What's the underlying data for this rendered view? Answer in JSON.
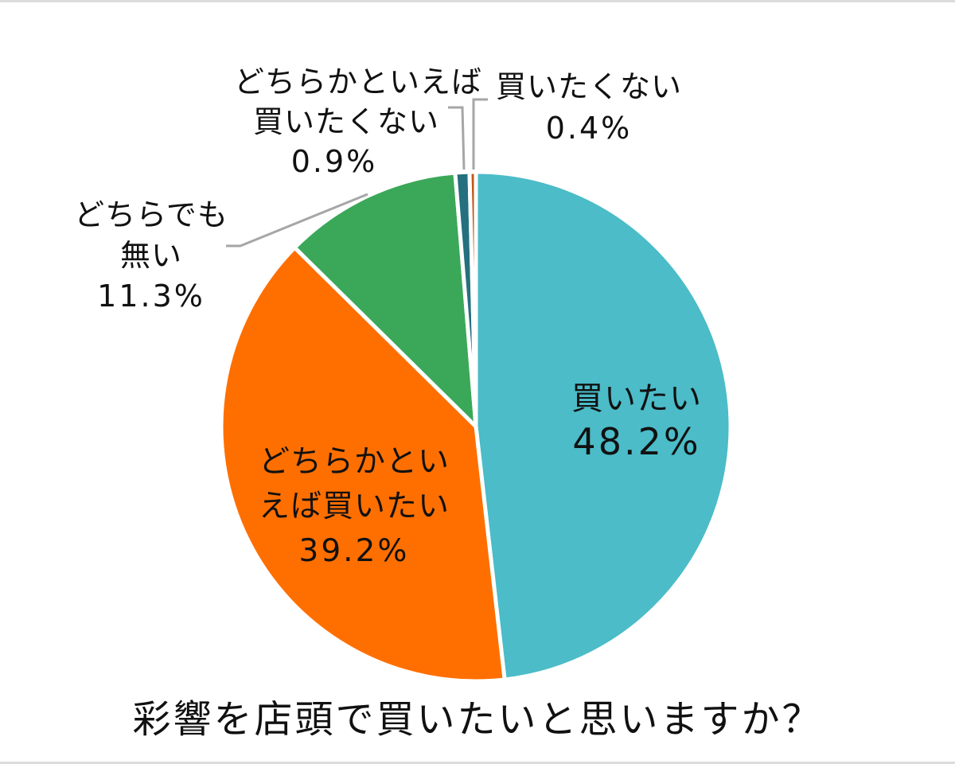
{
  "title": "彩響を店頭で買いたいと思いますか？",
  "colors": {
    "want": "#4BBCC8",
    "rather_want": "#FF6F00",
    "neither": "#3AA858",
    "rather_not": "#25707E",
    "not_want": "#C0561A",
    "leader": "#A6A6A6",
    "separator": "#FFFFFF"
  },
  "labels": {
    "want": {
      "line1": "買いたい",
      "pct": "48.2%"
    },
    "rather_want": {
      "line1": "どちらかとい",
      "line2": "えば買いたい",
      "pct": "39.2%"
    },
    "neither": {
      "line1": "どちらでも",
      "line2": "無い",
      "pct": "11.3%"
    },
    "rather_not": {
      "line1": "どちらかといえば",
      "line2": "買いたくない",
      "pct": "0.9%"
    },
    "not_want": {
      "line1": "買いたくない",
      "pct": "0.4%"
    }
  },
  "chart_data": {
    "type": "pie",
    "title": "彩響を店頭で買いたいと思いますか？",
    "start_angle": "12 o'clock, clockwise",
    "categories": [
      "買いたい",
      "どちらかといえば買いたい",
      "どちらでも無い",
      "どちらかといえば買いたくない",
      "買いたくない"
    ],
    "values": [
      48.2,
      39.2,
      11.3,
      0.9,
      0.4
    ],
    "unit": "%",
    "colors": [
      "#4BBCC8",
      "#FF6F00",
      "#3AA858",
      "#25707E",
      "#C0561A"
    ],
    "legend": "none (data labels on/near slices)"
  }
}
